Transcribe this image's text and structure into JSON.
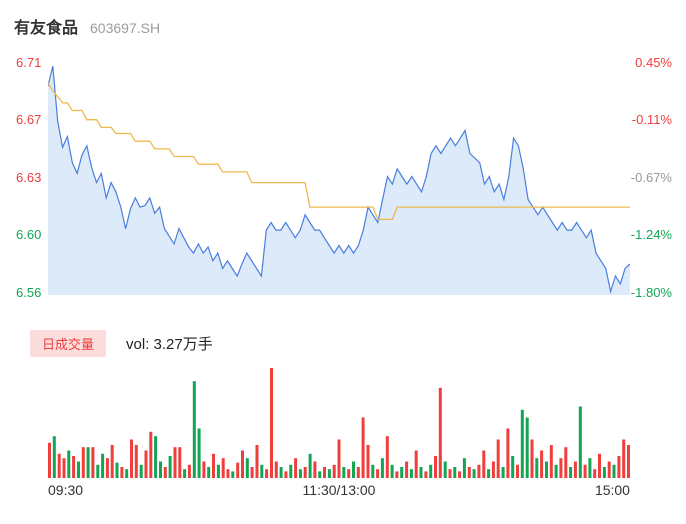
{
  "header": {
    "title": "有友食品",
    "code": "603697.SH"
  },
  "price_axis": {
    "left": [
      {
        "label": "6.71",
        "tone": "up"
      },
      {
        "label": "6.67",
        "tone": "up"
      },
      {
        "label": "6.63",
        "tone": "up"
      },
      {
        "label": "6.60",
        "tone": "down"
      },
      {
        "label": "6.56",
        "tone": "down"
      }
    ],
    "right": [
      {
        "label": "0.45%",
        "tone": "up"
      },
      {
        "label": "-0.11%",
        "tone": "up"
      },
      {
        "label": "-0.67%",
        "tone": "neutral"
      },
      {
        "label": "-1.24%",
        "tone": "down"
      },
      {
        "label": "-1.80%",
        "tone": "down"
      }
    ]
  },
  "volume": {
    "legend": "日成交量",
    "vol_label": "vol: 3.27万手"
  },
  "time_axis": [
    "09:30",
    "11:30/13:00",
    "15:00"
  ],
  "colors": {
    "up": "#ef3e3c",
    "down": "#11a554",
    "neutral": "#999999",
    "price_line": "#4a7edc",
    "price_fill": "#dceafa",
    "avg_line": "#eeb84f",
    "legend_bg": "#fbdddd"
  },
  "chart_data": [
    {
      "type": "area",
      "title": "intraday price",
      "x_range": [
        "09:30",
        "15:00"
      ],
      "y_domain": [
        6.56,
        6.71
      ],
      "y_tick_labels": [
        "6.71",
        "6.67",
        "6.63",
        "6.60",
        "6.56"
      ],
      "pct_tick_labels": [
        "0.45%",
        "-0.11%",
        "-0.67%",
        "-1.24%",
        "-1.80%"
      ],
      "series": [
        {
          "name": "price",
          "values": [
            6.695,
            6.708,
            6.672,
            6.655,
            6.662,
            6.645,
            6.638,
            6.65,
            6.656,
            6.642,
            6.632,
            6.638,
            6.622,
            6.632,
            6.626,
            6.616,
            6.602,
            6.615,
            6.622,
            6.616,
            6.617,
            6.622,
            6.612,
            6.616,
            6.602,
            6.597,
            6.592,
            6.602,
            6.596,
            6.59,
            6.586,
            6.592,
            6.586,
            6.59,
            6.581,
            6.586,
            6.576,
            6.581,
            6.576,
            6.571,
            6.579,
            6.586,
            6.581,
            6.576,
            6.571,
            6.601,
            6.606,
            6.601,
            6.601,
            6.606,
            6.601,
            6.596,
            6.601,
            6.611,
            6.606,
            6.601,
            6.601,
            6.596,
            6.591,
            6.586,
            6.591,
            6.586,
            6.591,
            6.586,
            6.591,
            6.601,
            6.616,
            6.611,
            6.606,
            6.621,
            6.636,
            6.631,
            6.641,
            6.636,
            6.631,
            6.636,
            6.631,
            6.626,
            6.636,
            6.651,
            6.656,
            6.651,
            6.656,
            6.661,
            6.656,
            6.661,
            6.666,
            6.651,
            6.648,
            6.645,
            6.631,
            6.636,
            6.626,
            6.631,
            6.621,
            6.636,
            6.661,
            6.656,
            6.641,
            6.621,
            6.616,
            6.611,
            6.616,
            6.611,
            6.606,
            6.601,
            6.606,
            6.601,
            6.601,
            6.606,
            6.601,
            6.596,
            6.601,
            6.586,
            6.581,
            6.576,
            6.561,
            6.571,
            6.566,
            6.576,
            6.579
          ]
        },
        {
          "name": "avg",
          "values": [
            6.697,
            6.692,
            6.688,
            6.684,
            6.684,
            6.679,
            6.679,
            6.679,
            6.673,
            6.673,
            6.673,
            6.668,
            6.668,
            6.668,
            6.664,
            6.664,
            6.664,
            6.664,
            6.659,
            6.659,
            6.659,
            6.659,
            6.654,
            6.654,
            6.654,
            6.654,
            6.649,
            6.649,
            6.649,
            6.649,
            6.649,
            6.644,
            6.644,
            6.644,
            6.644,
            6.644,
            6.639,
            6.639,
            6.639,
            6.639,
            6.639,
            6.639,
            6.632,
            6.632,
            6.632,
            6.632,
            6.632,
            6.632,
            6.632,
            6.632,
            6.632,
            6.632,
            6.632,
            6.632,
            6.616,
            6.616,
            6.616,
            6.616,
            6.616,
            6.616,
            6.616,
            6.616,
            6.616,
            6.616,
            6.616,
            6.616,
            6.616,
            6.616,
            6.608,
            6.608,
            6.608,
            6.608,
            6.616,
            6.616,
            6.616,
            6.616,
            6.616,
            6.616,
            6.616,
            6.616,
            6.616,
            6.616,
            6.616,
            6.616,
            6.616,
            6.616,
            6.616,
            6.616,
            6.616,
            6.616,
            6.616,
            6.616,
            6.616,
            6.616,
            6.616,
            6.616,
            6.616,
            6.616,
            6.616,
            6.616,
            6.616,
            6.616,
            6.616,
            6.616,
            6.616,
            6.616,
            6.616,
            6.616,
            6.616,
            6.616,
            6.616,
            6.616,
            6.616,
            6.616,
            6.616,
            6.616,
            6.616,
            6.616,
            6.616,
            6.616,
            6.616
          ]
        }
      ]
    },
    {
      "type": "bar",
      "title": "volume",
      "total_label": "3.27万手",
      "values": [
        32,
        38,
        22,
        18,
        25,
        20,
        15,
        28,
        28,
        28,
        12,
        22,
        18,
        30,
        14,
        10,
        8,
        35,
        30,
        12,
        25,
        42,
        38,
        15,
        10,
        20,
        28,
        28,
        8,
        12,
        88,
        45,
        15,
        10,
        22,
        12,
        18,
        8,
        6,
        14,
        25,
        18,
        10,
        30,
        12,
        8,
        100,
        15,
        10,
        6,
        12,
        18,
        8,
        10,
        22,
        15,
        6,
        10,
        8,
        12,
        35,
        10,
        8,
        15,
        10,
        55,
        30,
        12,
        8,
        18,
        38,
        12,
        6,
        10,
        15,
        8,
        25,
        10,
        6,
        12,
        20,
        82,
        15,
        8,
        10,
        6,
        18,
        10,
        8,
        12,
        25,
        8,
        15,
        35,
        10,
        45,
        20,
        12,
        62,
        55,
        35,
        18,
        25,
        15,
        30,
        12,
        18,
        28,
        10,
        15,
        65,
        12,
        18,
        8,
        22,
        10,
        15,
        12,
        20,
        35,
        30
      ],
      "bar_colors": "RGRRGRGRGRGGRRGRGRRGRRGGRGRRGRGGRGRGRRGRRGRRGRRRGRGRGRGRGRGRRGRGRRRGRGRGRGRGRGRGRRGRGRGRGRRGRRGRGRGGRGRGRGRRGRGRGRRGRGRRR"
    }
  ]
}
